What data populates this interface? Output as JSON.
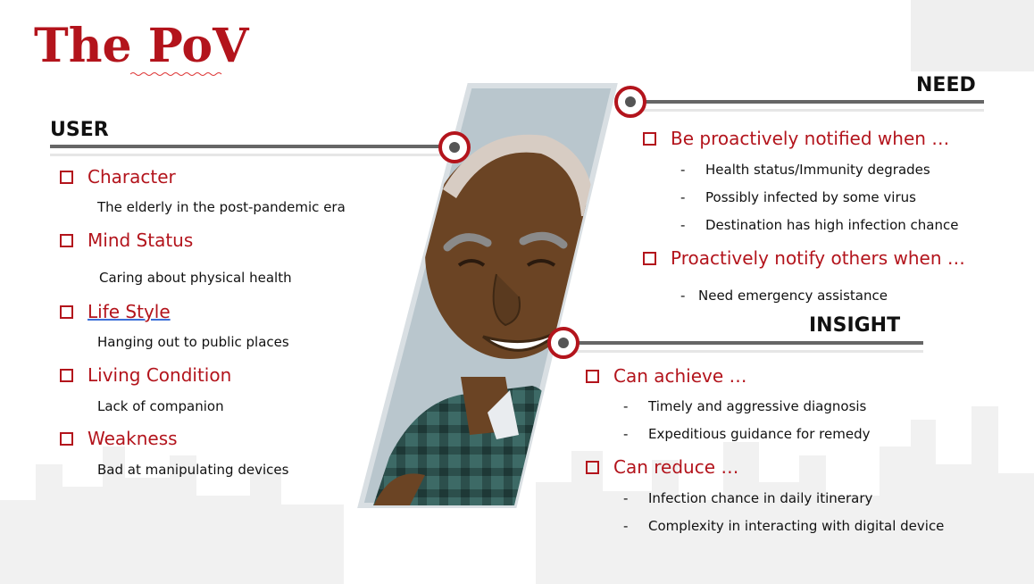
{
  "title": "The PoV",
  "user": {
    "heading": "USER",
    "items": [
      {
        "label": "Character",
        "detail": "The elderly in the post-pandemic era"
      },
      {
        "label": "Mind Status",
        "detail": "Caring about physical health"
      },
      {
        "label": "Life Style",
        "detail": "Hanging out to public places"
      },
      {
        "label": "Living Condition",
        "detail": "Lack of companion"
      },
      {
        "label": "Weakness",
        "detail": "Bad at manipulating devices"
      }
    ]
  },
  "need": {
    "heading": "NEED",
    "groups": [
      {
        "label": "Be proactively notified when …",
        "points": [
          "Health status/Immunity degrades",
          "Possibly infected by some virus",
          "Destination has high infection chance"
        ]
      },
      {
        "label": "Proactively notify others when …",
        "points": [
          "Need emergency assistance"
        ]
      }
    ]
  },
  "insight": {
    "heading": "INSIGHT",
    "groups": [
      {
        "label": "Can achieve …",
        "points": [
          "Timely and aggressive diagnosis",
          "Expeditious guidance for remedy"
        ]
      },
      {
        "label": "Can reduce …",
        "points": [
          "Infection chance in daily itinerary",
          "Complexity in interacting with digital device"
        ]
      }
    ]
  },
  "colors": {
    "accent": "#b3141c",
    "line": "#666666",
    "text": "#111111"
  },
  "icons": [
    "checkbox-bullet-icon",
    "connector-ring-icon",
    "elderly-man-illustration"
  ]
}
